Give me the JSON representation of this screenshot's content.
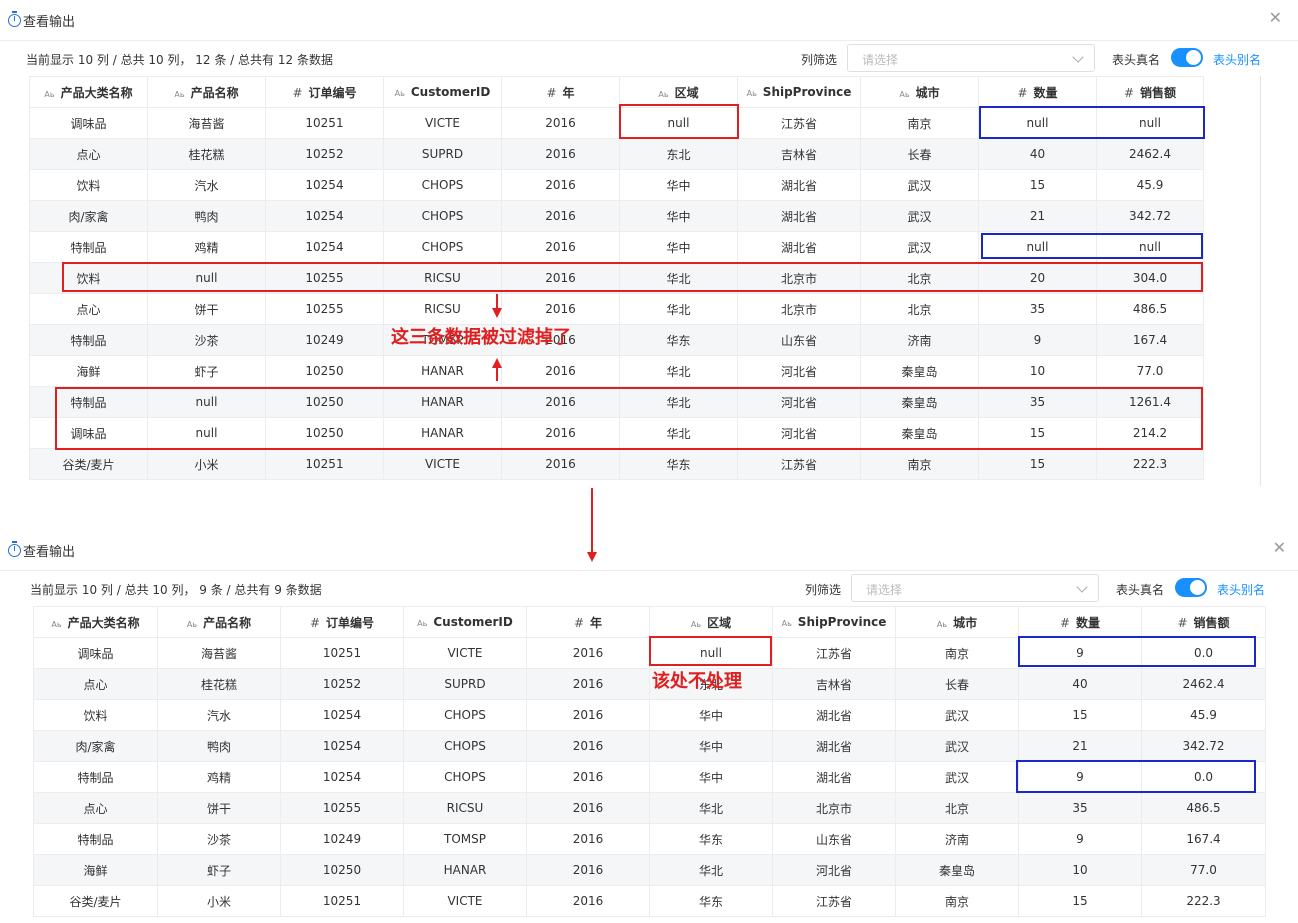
{
  "top": {
    "title": "查看输出",
    "summary": "当前显示 10 列 / 总共 10 列， 12 条 / 总共有 12 条数据",
    "filter_label": "列筛选",
    "filter_placeholder": "请选择",
    "toggle_label": "表头真名",
    "toggle_alias": "表头别名",
    "toggle_on": true,
    "annotation": "这三条数据被过滤掉了",
    "columns": [
      {
        "icon": "Aь",
        "label": "产品大类名称"
      },
      {
        "icon": "Aь",
        "label": "产品名称"
      },
      {
        "icon": "#",
        "label": "订单编号"
      },
      {
        "icon": "Aь",
        "label": "CustomerID"
      },
      {
        "icon": "#",
        "label": "年"
      },
      {
        "icon": "Aь",
        "label": "区域"
      },
      {
        "icon": "Aь",
        "label": "ShipProvince"
      },
      {
        "icon": "Aь",
        "label": "城市"
      },
      {
        "icon": "#",
        "label": "数量"
      },
      {
        "icon": "#",
        "label": "销售额"
      }
    ],
    "rows": [
      [
        "调味品",
        "海苔酱",
        "10251",
        "VICTE",
        "2016",
        "null",
        "江苏省",
        "南京",
        "null",
        "null"
      ],
      [
        "点心",
        "桂花糕",
        "10252",
        "SUPRD",
        "2016",
        "东北",
        "吉林省",
        "长春",
        "40",
        "2462.4"
      ],
      [
        "饮料",
        "汽水",
        "10254",
        "CHOPS",
        "2016",
        "华中",
        "湖北省",
        "武汉",
        "15",
        "45.9"
      ],
      [
        "肉/家禽",
        "鸭肉",
        "10254",
        "CHOPS",
        "2016",
        "华中",
        "湖北省",
        "武汉",
        "21",
        "342.72"
      ],
      [
        "特制品",
        "鸡精",
        "10254",
        "CHOPS",
        "2016",
        "华中",
        "湖北省",
        "武汉",
        "null",
        "null"
      ],
      [
        "饮料",
        "null",
        "10255",
        "RICSU",
        "2016",
        "华北",
        "北京市",
        "北京",
        "20",
        "304.0"
      ],
      [
        "点心",
        "饼干",
        "10255",
        "RICSU",
        "2016",
        "华北",
        "北京市",
        "北京",
        "35",
        "486.5"
      ],
      [
        "特制品",
        "沙茶",
        "10249",
        "TOMSP",
        "2016",
        "华东",
        "山东省",
        "济南",
        "9",
        "167.4"
      ],
      [
        "海鲜",
        "虾子",
        "10250",
        "HANAR",
        "2016",
        "华北",
        "河北省",
        "秦皇岛",
        "10",
        "77.0"
      ],
      [
        "特制品",
        "null",
        "10250",
        "HANAR",
        "2016",
        "华北",
        "河北省",
        "秦皇岛",
        "35",
        "1261.4"
      ],
      [
        "调味品",
        "null",
        "10250",
        "HANAR",
        "2016",
        "华北",
        "河北省",
        "秦皇岛",
        "15",
        "214.2"
      ],
      [
        "谷类/麦片",
        "小米",
        "10251",
        "VICTE",
        "2016",
        "华东",
        "江苏省",
        "南京",
        "15",
        "222.3"
      ]
    ]
  },
  "bottom": {
    "title": "查看输出",
    "summary": "当前显示 10 列 / 总共 10 列， 9 条 / 总共有 9 条数据",
    "filter_label": "列筛选",
    "filter_placeholder": "请选择",
    "toggle_label": "表头真名",
    "toggle_alias": "表头别名",
    "toggle_on": true,
    "annotation": "该处不处理",
    "columns": [
      {
        "icon": "Aь",
        "label": "产品大类名称"
      },
      {
        "icon": "Aь",
        "label": "产品名称"
      },
      {
        "icon": "#",
        "label": "订单编号"
      },
      {
        "icon": "Aь",
        "label": "CustomerID"
      },
      {
        "icon": "#",
        "label": "年"
      },
      {
        "icon": "Aь",
        "label": "区域"
      },
      {
        "icon": "Aь",
        "label": "ShipProvince"
      },
      {
        "icon": "Aь",
        "label": "城市"
      },
      {
        "icon": "#",
        "label": "数量"
      },
      {
        "icon": "#",
        "label": "销售额"
      }
    ],
    "rows": [
      [
        "调味品",
        "海苔酱",
        "10251",
        "VICTE",
        "2016",
        "null",
        "江苏省",
        "南京",
        "9",
        "0.0"
      ],
      [
        "点心",
        "桂花糕",
        "10252",
        "SUPRD",
        "2016",
        "东北",
        "吉林省",
        "长春",
        "40",
        "2462.4"
      ],
      [
        "饮料",
        "汽水",
        "10254",
        "CHOPS",
        "2016",
        "华中",
        "湖北省",
        "武汉",
        "15",
        "45.9"
      ],
      [
        "肉/家禽",
        "鸭肉",
        "10254",
        "CHOPS",
        "2016",
        "华中",
        "湖北省",
        "武汉",
        "21",
        "342.72"
      ],
      [
        "特制品",
        "鸡精",
        "10254",
        "CHOPS",
        "2016",
        "华中",
        "湖北省",
        "武汉",
        "9",
        "0.0"
      ],
      [
        "点心",
        "饼干",
        "10255",
        "RICSU",
        "2016",
        "华北",
        "北京市",
        "北京",
        "35",
        "486.5"
      ],
      [
        "特制品",
        "沙茶",
        "10249",
        "TOMSP",
        "2016",
        "华东",
        "山东省",
        "济南",
        "9",
        "167.4"
      ],
      [
        "海鲜",
        "虾子",
        "10250",
        "HANAR",
        "2016",
        "华北",
        "河北省",
        "秦皇岛",
        "10",
        "77.0"
      ],
      [
        "谷类/麦片",
        "小米",
        "10251",
        "VICTE",
        "2016",
        "华东",
        "江苏省",
        "南京",
        "15",
        "222.3"
      ]
    ]
  },
  "colors": {
    "annotation_red": "#e02020",
    "annotation_blue": "#1a28c8",
    "accent": "#1890ff",
    "stripe": "#f5f6f8",
    "border": "#ececec"
  }
}
